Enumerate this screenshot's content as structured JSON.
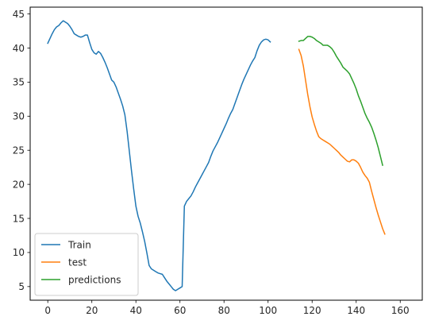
{
  "chart_data": {
    "type": "line",
    "title": "",
    "xlabel": "",
    "ylabel": "",
    "xlim": [
      -8,
      170
    ],
    "ylim": [
      3,
      46
    ],
    "x_ticks": [
      0,
      20,
      40,
      60,
      80,
      100,
      120,
      140,
      160
    ],
    "y_ticks": [
      5,
      10,
      15,
      20,
      25,
      30,
      35,
      40,
      45
    ],
    "grid": false,
    "legend_position": "lower-left",
    "series": [
      {
        "name": "Train",
        "color": "#1f77b4",
        "points": [
          [
            0,
            40.7
          ],
          [
            1,
            41.4
          ],
          [
            2,
            42.1
          ],
          [
            3,
            42.7
          ],
          [
            4,
            43.1
          ],
          [
            5,
            43.3
          ],
          [
            6,
            43.7
          ],
          [
            7,
            44.0
          ],
          [
            8,
            43.8
          ],
          [
            9,
            43.6
          ],
          [
            10,
            43.2
          ],
          [
            11,
            42.7
          ],
          [
            12,
            42.1
          ],
          [
            13,
            41.9
          ],
          [
            14,
            41.7
          ],
          [
            15,
            41.6
          ],
          [
            16,
            41.7
          ],
          [
            17,
            41.9
          ],
          [
            18,
            41.9
          ],
          [
            19,
            40.8
          ],
          [
            20,
            39.8
          ],
          [
            21,
            39.3
          ],
          [
            22,
            39.1
          ],
          [
            23,
            39.5
          ],
          [
            24,
            39.2
          ],
          [
            25,
            38.6
          ],
          [
            26,
            37.9
          ],
          [
            27,
            37.1
          ],
          [
            28,
            36.2
          ],
          [
            29,
            35.3
          ],
          [
            30,
            35.0
          ],
          [
            31,
            34.3
          ],
          [
            32,
            33.4
          ],
          [
            33,
            32.5
          ],
          [
            34,
            31.5
          ],
          [
            35,
            30.2
          ],
          [
            36,
            27.8
          ],
          [
            37,
            24.9
          ],
          [
            38,
            22.0
          ],
          [
            39,
            19.3
          ],
          [
            40,
            16.8
          ],
          [
            41,
            15.3
          ],
          [
            42,
            14.3
          ],
          [
            43,
            13.0
          ],
          [
            44,
            11.6
          ],
          [
            45,
            9.9
          ],
          [
            46,
            8.1
          ],
          [
            47,
            7.6
          ],
          [
            48,
            7.4
          ],
          [
            49,
            7.2
          ],
          [
            50,
            7.0
          ],
          [
            51,
            6.9
          ],
          [
            52,
            6.8
          ],
          [
            53,
            6.3
          ],
          [
            54,
            5.8
          ],
          [
            55,
            5.4
          ],
          [
            56,
            5.0
          ],
          [
            57,
            4.6
          ],
          [
            58,
            4.4
          ],
          [
            59,
            4.6
          ],
          [
            60,
            4.8
          ],
          [
            61,
            5.0
          ],
          [
            62,
            16.8
          ],
          [
            63,
            17.5
          ],
          [
            64,
            17.9
          ],
          [
            65,
            18.3
          ],
          [
            66,
            18.9
          ],
          [
            67,
            19.6
          ],
          [
            68,
            20.2
          ],
          [
            69,
            20.8
          ],
          [
            70,
            21.4
          ],
          [
            71,
            22.0
          ],
          [
            72,
            22.6
          ],
          [
            73,
            23.2
          ],
          [
            74,
            24.1
          ],
          [
            75,
            24.9
          ],
          [
            76,
            25.5
          ],
          [
            77,
            26.1
          ],
          [
            78,
            26.8
          ],
          [
            79,
            27.5
          ],
          [
            80,
            28.2
          ],
          [
            81,
            28.9
          ],
          [
            82,
            29.7
          ],
          [
            83,
            30.4
          ],
          [
            84,
            31.0
          ],
          [
            85,
            31.9
          ],
          [
            86,
            32.8
          ],
          [
            87,
            33.7
          ],
          [
            88,
            34.6
          ],
          [
            89,
            35.4
          ],
          [
            90,
            36.1
          ],
          [
            91,
            36.8
          ],
          [
            92,
            37.5
          ],
          [
            93,
            38.1
          ],
          [
            94,
            38.6
          ],
          [
            95,
            39.6
          ],
          [
            96,
            40.4
          ],
          [
            97,
            40.9
          ],
          [
            98,
            41.2
          ],
          [
            99,
            41.3
          ],
          [
            100,
            41.2
          ],
          [
            101,
            40.9
          ]
        ]
      },
      {
        "name": "test",
        "color": "#ff7f0e",
        "points": [
          [
            114,
            39.8
          ],
          [
            115,
            38.9
          ],
          [
            116,
            37.4
          ],
          [
            117,
            35.3
          ],
          [
            118,
            33.2
          ],
          [
            119,
            31.4
          ],
          [
            120,
            29.9
          ],
          [
            121,
            28.8
          ],
          [
            122,
            27.8
          ],
          [
            123,
            27.0
          ],
          [
            124,
            26.7
          ],
          [
            125,
            26.5
          ],
          [
            126,
            26.3
          ],
          [
            127,
            26.1
          ],
          [
            128,
            25.9
          ],
          [
            129,
            25.6
          ],
          [
            130,
            25.3
          ],
          [
            131,
            25.0
          ],
          [
            132,
            24.7
          ],
          [
            133,
            24.3
          ],
          [
            134,
            24.0
          ],
          [
            135,
            23.7
          ],
          [
            136,
            23.4
          ],
          [
            137,
            23.3
          ],
          [
            138,
            23.6
          ],
          [
            139,
            23.6
          ],
          [
            140,
            23.4
          ],
          [
            141,
            23.1
          ],
          [
            142,
            22.5
          ],
          [
            143,
            21.8
          ],
          [
            144,
            21.3
          ],
          [
            145,
            20.9
          ],
          [
            146,
            20.3
          ],
          [
            147,
            19.0
          ],
          [
            148,
            17.8
          ],
          [
            149,
            16.6
          ],
          [
            150,
            15.5
          ],
          [
            151,
            14.5
          ],
          [
            152,
            13.5
          ],
          [
            153,
            12.7
          ]
        ]
      },
      {
        "name": "predictions",
        "color": "#2ca02c",
        "points": [
          [
            114,
            41.0
          ],
          [
            115,
            41.1
          ],
          [
            116,
            41.1
          ],
          [
            117,
            41.4
          ],
          [
            118,
            41.7
          ],
          [
            119,
            41.7
          ],
          [
            120,
            41.6
          ],
          [
            121,
            41.4
          ],
          [
            122,
            41.1
          ],
          [
            123,
            40.9
          ],
          [
            124,
            40.7
          ],
          [
            125,
            40.4
          ],
          [
            126,
            40.4
          ],
          [
            127,
            40.4
          ],
          [
            128,
            40.2
          ],
          [
            129,
            39.9
          ],
          [
            130,
            39.4
          ],
          [
            131,
            38.8
          ],
          [
            132,
            38.3
          ],
          [
            133,
            37.8
          ],
          [
            134,
            37.2
          ],
          [
            135,
            36.9
          ],
          [
            136,
            36.6
          ],
          [
            137,
            36.2
          ],
          [
            138,
            35.5
          ],
          [
            139,
            34.8
          ],
          [
            140,
            34.0
          ],
          [
            141,
            33.0
          ],
          [
            142,
            32.2
          ],
          [
            143,
            31.3
          ],
          [
            144,
            30.4
          ],
          [
            145,
            29.7
          ],
          [
            146,
            29.1
          ],
          [
            147,
            28.4
          ],
          [
            148,
            27.5
          ],
          [
            149,
            26.5
          ],
          [
            150,
            25.4
          ],
          [
            151,
            24.1
          ],
          [
            152,
            22.8
          ]
        ]
      }
    ]
  }
}
